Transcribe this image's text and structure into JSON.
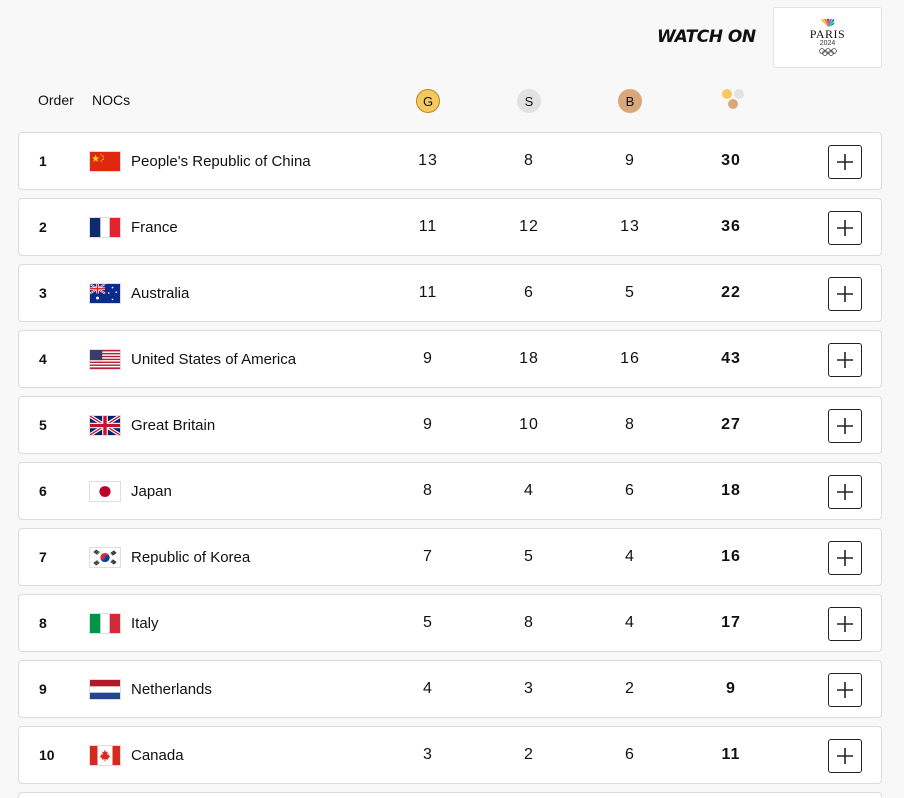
{
  "watch": {
    "label": "WATCH ON",
    "logo_word": "PARIS",
    "logo_year": "2024"
  },
  "header": {
    "order": "Order",
    "nocs": "NOCs",
    "gold": "G",
    "silver": "S",
    "bronze": "B",
    "total_icon": "medals-total-icon"
  },
  "colors": {
    "gold": "#f5c960",
    "silver": "#e2e2e2",
    "bronze": "#d9a77a"
  },
  "rows": [
    {
      "rank": "1",
      "flag": "china-flag",
      "name": "People's Republic of China",
      "gold": "13",
      "silver": "8",
      "bronze": "9",
      "total": "30"
    },
    {
      "rank": "2",
      "flag": "france-flag",
      "name": "France",
      "gold": "11",
      "silver": "12",
      "bronze": "13",
      "total": "36"
    },
    {
      "rank": "3",
      "flag": "australia-flag",
      "name": "Australia",
      "gold": "11",
      "silver": "6",
      "bronze": "5",
      "total": "22"
    },
    {
      "rank": "4",
      "flag": "usa-flag",
      "name": "United States of America",
      "gold": "9",
      "silver": "18",
      "bronze": "16",
      "total": "43"
    },
    {
      "rank": "5",
      "flag": "great-britain-flag",
      "name": "Great Britain",
      "gold": "9",
      "silver": "10",
      "bronze": "8",
      "total": "27"
    },
    {
      "rank": "6",
      "flag": "japan-flag",
      "name": "Japan",
      "gold": "8",
      "silver": "4",
      "bronze": "6",
      "total": "18"
    },
    {
      "rank": "7",
      "flag": "korea-flag",
      "name": "Republic of Korea",
      "gold": "7",
      "silver": "5",
      "bronze": "4",
      "total": "16"
    },
    {
      "rank": "8",
      "flag": "italy-flag",
      "name": "Italy",
      "gold": "5",
      "silver": "8",
      "bronze": "4",
      "total": "17"
    },
    {
      "rank": "9",
      "flag": "netherlands-flag",
      "name": "Netherlands",
      "gold": "4",
      "silver": "3",
      "bronze": "2",
      "total": "9"
    },
    {
      "rank": "10",
      "flag": "canada-flag",
      "name": "Canada",
      "gold": "3",
      "silver": "2",
      "bronze": "6",
      "total": "11"
    }
  ],
  "expand_icon": "plus-icon"
}
